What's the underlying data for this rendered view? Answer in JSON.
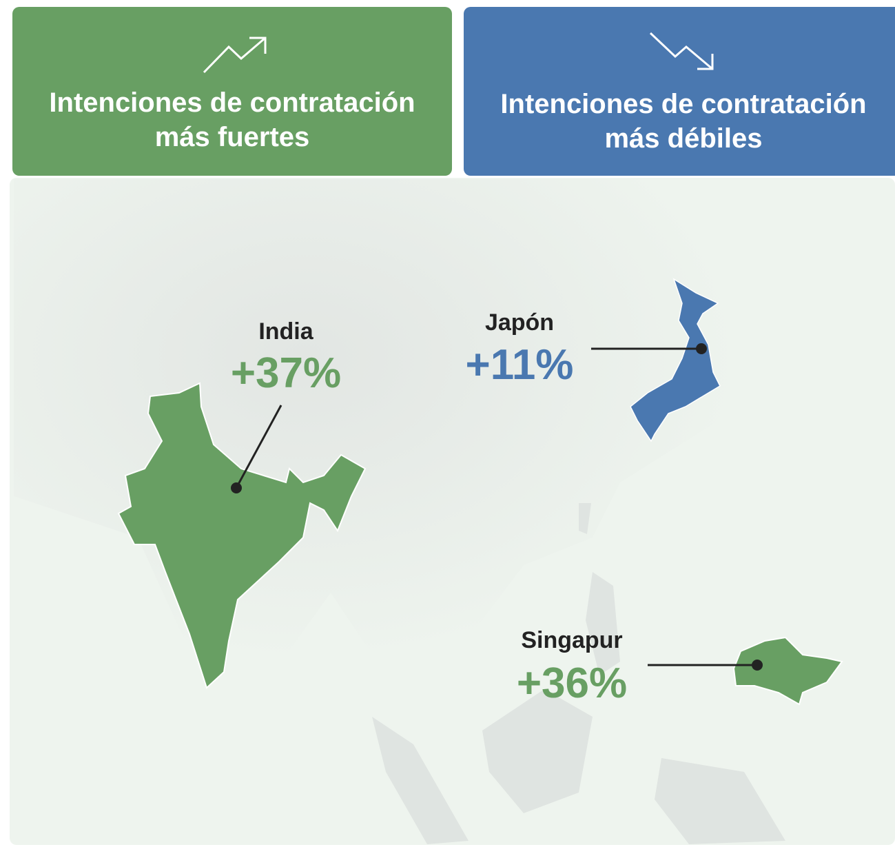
{
  "panels": [
    {
      "title_lines": [
        "Intenciones de contratación",
        "más fuertes"
      ]
    },
    {
      "title_lines": [
        "Intenciones de contratación",
        "más débiles"
      ]
    }
  ],
  "markers": [
    {
      "name": "India",
      "value": "+37%"
    },
    {
      "name": "Japón",
      "value": "+11%"
    },
    {
      "name": "Singapur",
      "value": "+36%"
    }
  ]
}
